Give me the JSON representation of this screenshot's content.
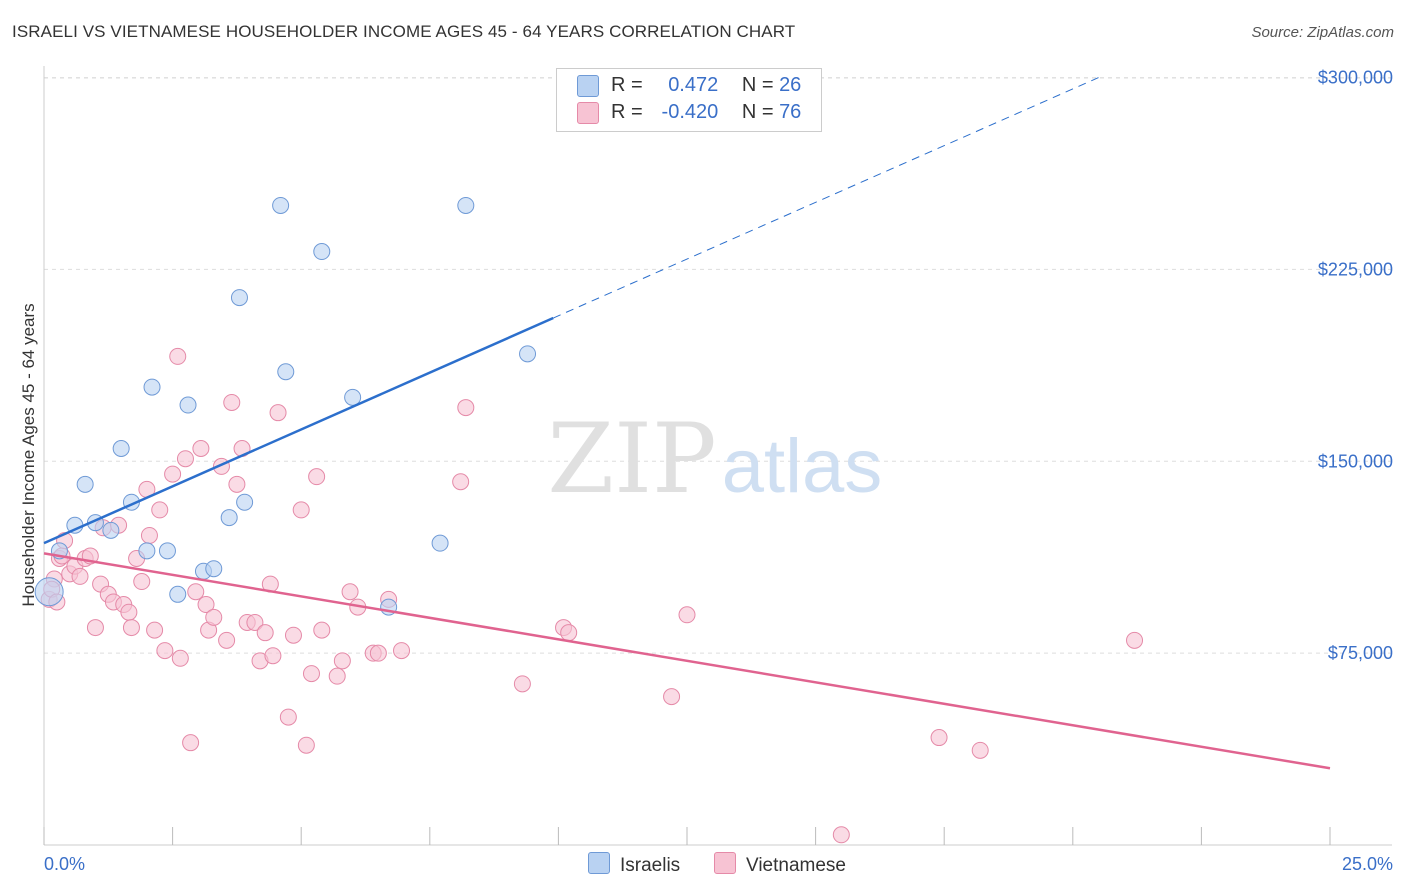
{
  "title": "ISRAELI VS VIETNAMESE HOUSEHOLDER INCOME AGES 45 - 64 YEARS CORRELATION CHART",
  "source": "Source: ZipAtlas.com",
  "watermark": {
    "zip": "ZIP",
    "atlas": "atlas"
  },
  "legend": {
    "israelis": {
      "r_label": "R =",
      "r_value": "0.472",
      "n_label": "N =",
      "n_value": "26"
    },
    "vietnamese": {
      "r_label": "R =",
      "r_value": "-0.420",
      "n_label": "N =",
      "n_value": "76"
    }
  },
  "bottom_legend": {
    "israelis": "Israelis",
    "vietnamese": "Vietnamese"
  },
  "colors": {
    "israelis_fill": "#b9d2f2",
    "israelis_stroke": "#6f9ad6",
    "israelis_line": "#2c6fcc",
    "vietnamese_fill": "#f7c3d3",
    "vietnamese_stroke": "#e58aa8",
    "vietnamese_line": "#e0638f",
    "tick_text": "#3a6fc8",
    "grid": "#dddddd"
  },
  "chart_data": {
    "type": "scatter",
    "title": "ISRAELI VS VIETNAMESE HOUSEHOLDER INCOME AGES 45 - 64 YEARS CORRELATION CHART",
    "xlabel": "",
    "ylabel": "Householder Income Ages 45 - 64 years",
    "xlim": [
      0,
      25
    ],
    "ylim": [
      0,
      310000
    ],
    "x_tick_labels": [
      "0.0%",
      "25.0%"
    ],
    "y_ticks": [
      75000,
      150000,
      225000,
      300000
    ],
    "y_tick_labels": [
      "$75,000",
      "$150,000",
      "$225,000",
      "$300,000"
    ],
    "grid": true,
    "series": [
      {
        "name": "Israelis",
        "points": [
          [
            0.1,
            99000
          ],
          [
            0.3,
            115000
          ],
          [
            0.6,
            125000
          ],
          [
            0.8,
            141000
          ],
          [
            1.0,
            126000
          ],
          [
            1.3,
            123000
          ],
          [
            1.5,
            155000
          ],
          [
            1.7,
            134000
          ],
          [
            2.0,
            115000
          ],
          [
            2.1,
            179000
          ],
          [
            2.4,
            115000
          ],
          [
            2.6,
            98000
          ],
          [
            2.8,
            172000
          ],
          [
            3.1,
            107000
          ],
          [
            3.3,
            108000
          ],
          [
            3.6,
            128000
          ],
          [
            3.8,
            214000
          ],
          [
            3.9,
            134000
          ],
          [
            4.6,
            250000
          ],
          [
            4.7,
            185000
          ],
          [
            5.4,
            232000
          ],
          [
            6.0,
            175000
          ],
          [
            6.7,
            93000
          ],
          [
            7.7,
            118000
          ],
          [
            8.2,
            250000
          ],
          [
            9.4,
            192000
          ]
        ],
        "trend": {
          "x0": 0.0,
          "y0": 118000,
          "x1": 9.9,
          "y1": 206000,
          "x_dash_end": 20.5,
          "y_dash_end": 300000
        }
      },
      {
        "name": "Vietnamese",
        "points": [
          [
            0.1,
            96000
          ],
          [
            0.2,
            104000
          ],
          [
            0.3,
            112000
          ],
          [
            0.35,
            113000
          ],
          [
            0.4,
            119000
          ],
          [
            0.5,
            106000
          ],
          [
            0.6,
            109000
          ],
          [
            0.7,
            105000
          ],
          [
            0.8,
            112000
          ],
          [
            0.9,
            113000
          ],
          [
            1.0,
            85000
          ],
          [
            1.1,
            102000
          ],
          [
            1.15,
            124000
          ],
          [
            1.25,
            98000
          ],
          [
            1.35,
            95000
          ],
          [
            1.45,
            125000
          ],
          [
            1.55,
            94000
          ],
          [
            1.65,
            91000
          ],
          [
            1.7,
            85000
          ],
          [
            1.8,
            112000
          ],
          [
            1.9,
            103000
          ],
          [
            2.0,
            139000
          ],
          [
            2.05,
            121000
          ],
          [
            2.15,
            84000
          ],
          [
            2.25,
            131000
          ],
          [
            2.35,
            76000
          ],
          [
            2.5,
            145000
          ],
          [
            2.6,
            191000
          ],
          [
            2.65,
            73000
          ],
          [
            2.75,
            151000
          ],
          [
            2.85,
            40000
          ],
          [
            2.95,
            99000
          ],
          [
            3.05,
            155000
          ],
          [
            3.15,
            94000
          ],
          [
            3.2,
            84000
          ],
          [
            3.3,
            89000
          ],
          [
            3.45,
            148000
          ],
          [
            3.55,
            80000
          ],
          [
            3.65,
            173000
          ],
          [
            3.75,
            141000
          ],
          [
            3.85,
            155000
          ],
          [
            3.95,
            87000
          ],
          [
            4.1,
            87000
          ],
          [
            4.2,
            72000
          ],
          [
            4.3,
            83000
          ],
          [
            4.4,
            102000
          ],
          [
            4.45,
            74000
          ],
          [
            4.55,
            169000
          ],
          [
            4.75,
            50000
          ],
          [
            4.85,
            82000
          ],
          [
            5.0,
            131000
          ],
          [
            5.1,
            39000
          ],
          [
            5.2,
            67000
          ],
          [
            5.3,
            144000
          ],
          [
            5.4,
            84000
          ],
          [
            5.7,
            66000
          ],
          [
            5.8,
            72000
          ],
          [
            5.95,
            99000
          ],
          [
            6.1,
            93000
          ],
          [
            6.4,
            75000
          ],
          [
            6.5,
            75000
          ],
          [
            6.7,
            96000
          ],
          [
            6.95,
            76000
          ],
          [
            8.1,
            142000
          ],
          [
            8.2,
            171000
          ],
          [
            9.3,
            63000
          ],
          [
            10.1,
            85000
          ],
          [
            10.2,
            83000
          ],
          [
            12.2,
            58000
          ],
          [
            12.5,
            90000
          ],
          [
            15.5,
            4000
          ],
          [
            17.4,
            42000
          ],
          [
            18.2,
            37000
          ],
          [
            21.2,
            80000
          ],
          [
            0.15,
            100000
          ],
          [
            0.25,
            95000
          ]
        ],
        "trend": {
          "x0": 0.0,
          "y0": 114000,
          "x1": 25.0,
          "y1": 30000
        }
      }
    ]
  }
}
